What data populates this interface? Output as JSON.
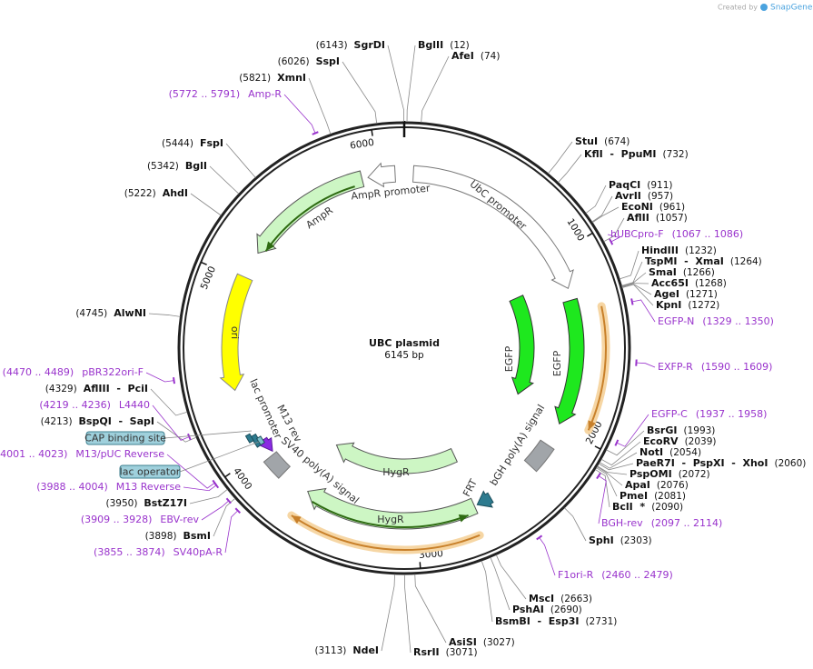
{
  "header": {
    "created_by": "Created by",
    "brand": "SnapGene"
  },
  "title": "UBC plasmid",
  "size": "6145 bp",
  "ring_ticks": [
    1000,
    2000,
    3000,
    4000,
    5000,
    6000
  ],
  "enzymes": [
    {
      "name": "BglII",
      "position": "(12)"
    },
    {
      "name": "AfeI",
      "position": "(74)"
    },
    {
      "name": "StuI",
      "position": "(674)"
    },
    {
      "name": "KflI  -  PpuMI",
      "position": "(732)"
    },
    {
      "name": "PaqCI",
      "position": "(911)"
    },
    {
      "name": "AvrII",
      "position": "(957)"
    },
    {
      "name": "EcoNI",
      "position": "(961)"
    },
    {
      "name": "AflII",
      "position": "(1057)"
    },
    {
      "name": "HindIII",
      "position": "(1232)"
    },
    {
      "name": "TspMI  -  XmaI",
      "position": "(1264)"
    },
    {
      "name": "SmaI",
      "position": "(1266)"
    },
    {
      "name": "Acc65I",
      "position": "(1268)"
    },
    {
      "name": "AgeI",
      "position": "(1271)"
    },
    {
      "name": "KpnI",
      "position": "(1272)"
    },
    {
      "name": "BsrGI",
      "position": "(1993)"
    },
    {
      "name": "EcoRV",
      "position": "(2039)"
    },
    {
      "name": "NotI",
      "position": "(2054)"
    },
    {
      "name": "PaeR7I  -  PspXI  -  XhoI",
      "position": "(2060)"
    },
    {
      "name": "PspOMI",
      "position": "(2072)"
    },
    {
      "name": "ApaI",
      "position": "(2076)"
    },
    {
      "name": "PmeI",
      "position": "(2081)"
    },
    {
      "name": "BclI  *",
      "position": "(2090)"
    },
    {
      "name": "SphI",
      "position": "(2303)"
    },
    {
      "name": "MscI",
      "position": "(2663)"
    },
    {
      "name": "PshAI",
      "position": "(2690)"
    },
    {
      "name": "BsmBI  -  Esp3I",
      "position": "(2731)"
    },
    {
      "name": "AsiSI",
      "position": "(3027)"
    },
    {
      "name": "RsrII",
      "position": "(3071)"
    },
    {
      "name": "NdeI",
      "position": "(3113)"
    },
    {
      "name": "BsmI",
      "position": "(3898)"
    },
    {
      "name": "BstZ17I",
      "position": "(3950)"
    },
    {
      "name": "BspQI  -  SapI",
      "position": "(4213)"
    },
    {
      "name": "AflIII  -  PciI",
      "position": "(4329)"
    },
    {
      "name": "AlwNI",
      "position": "(4745)"
    },
    {
      "name": "AhdI",
      "position": "(5222)"
    },
    {
      "name": "BglI",
      "position": "(5342)"
    },
    {
      "name": "FspI",
      "position": "(5444)"
    },
    {
      "name": "XmnI",
      "position": "(5821)"
    },
    {
      "name": "SspI",
      "position": "(6026)"
    },
    {
      "name": "SgrDI",
      "position": "(6143)"
    }
  ],
  "primers": [
    {
      "name": "hUBCpro-F",
      "range": "(1067 .. 1086)"
    },
    {
      "name": "EGFP-N",
      "range": "(1329 .. 1350)"
    },
    {
      "name": "EXFP-R",
      "range": "(1590 .. 1609)"
    },
    {
      "name": "EGFP-C",
      "range": "(1937 .. 1958)"
    },
    {
      "name": "BGH-rev",
      "range": "(2097 .. 2114)"
    },
    {
      "name": "F1ori-R",
      "range": "(2460 .. 2479)"
    },
    {
      "name": "SV40pA-R",
      "range": "(3855 .. 3874)"
    },
    {
      "name": "EBV-rev",
      "range": "(3909 .. 3928)"
    },
    {
      "name": "M13 Reverse",
      "range": "(3988 .. 4004)"
    },
    {
      "name": "M13/pUC Reverse",
      "range": "(4001 .. 4023)"
    },
    {
      "name": "L4440",
      "range": "(4219 .. 4236)"
    },
    {
      "name": "pBR322ori-F",
      "range": "(4470 .. 4489)"
    },
    {
      "name": "Amp-R",
      "range": "(5772 .. 5791)"
    }
  ],
  "features": [
    {
      "label": "UbC promoter"
    },
    {
      "label": "AmpR promoter"
    },
    {
      "label": "AmpR"
    },
    {
      "label": "ori"
    },
    {
      "label": "EGFP"
    },
    {
      "label": "EGFP"
    },
    {
      "label": "bGH poly(A) signal"
    },
    {
      "label": "FRT"
    },
    {
      "label": "HygR"
    },
    {
      "label": "HygR"
    },
    {
      "label": "SV40 poly(A) signal"
    },
    {
      "label": "lac promoter"
    },
    {
      "label": "M13 rev"
    }
  ],
  "boxed_features": [
    {
      "label": "CAP binding site"
    },
    {
      "label": "lac operator"
    }
  ]
}
